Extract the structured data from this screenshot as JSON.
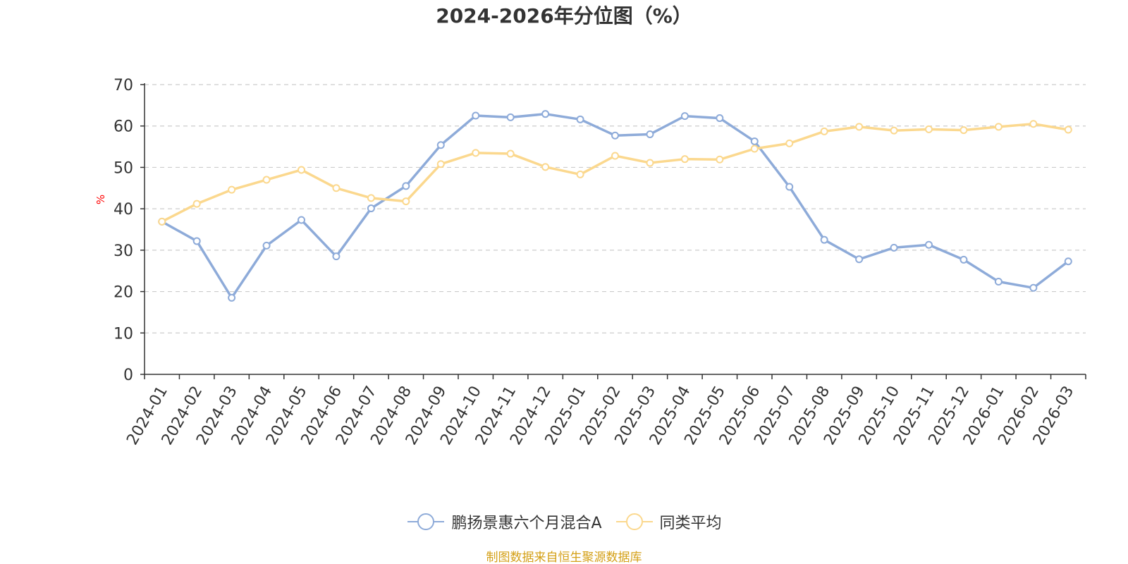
{
  "chart_data": {
    "type": "line",
    "title": "2024-2026年分位图（%）",
    "ylabel": "%",
    "xlabel": "",
    "ylim": [
      0,
      70
    ],
    "yticks": [
      0,
      10,
      20,
      30,
      40,
      50,
      60,
      70
    ],
    "grid": true,
    "legend_position": "bottom",
    "categories": [
      "2024-01",
      "2024-02",
      "2024-03",
      "2024-04",
      "2024-05",
      "2024-06",
      "2024-07",
      "2024-08",
      "2024-09",
      "2024-10",
      "2024-11",
      "2024-12",
      "2025-01",
      "2025-02",
      "2025-03",
      "2025-04",
      "2025-05",
      "2025-06",
      "2025-07",
      "2025-08",
      "2025-09",
      "2025-10",
      "2025-11",
      "2025-12",
      "2026-01",
      "2026-02",
      "2026-03"
    ],
    "series": [
      {
        "name": "鹏扬景惠六个月混合A",
        "color": "#8eabd9",
        "values": [
          36.9,
          32.2,
          18.5,
          31.1,
          37.3,
          28.5,
          40.1,
          45.5,
          55.4,
          62.5,
          62.1,
          62.9,
          61.6,
          57.7,
          58.0,
          62.4,
          61.9,
          56.3,
          45.3,
          32.5,
          27.8,
          30.6,
          31.3,
          27.7,
          22.4,
          20.9,
          27.3
        ]
      },
      {
        "name": "同类平均",
        "color": "#fbd88e",
        "values": [
          36.9,
          41.2,
          44.6,
          47.0,
          49.4,
          45.0,
          42.6,
          41.8,
          50.8,
          53.5,
          53.3,
          50.1,
          48.3,
          52.8,
          51.1,
          52.0,
          51.9,
          54.5,
          55.8,
          58.7,
          59.8,
          58.9,
          59.2,
          59.0,
          59.8,
          60.5,
          59.1
        ]
      }
    ]
  },
  "source_note": "制图数据来自恒生聚源数据库",
  "colors": {
    "axis": "#333333",
    "grid": "#cccccc",
    "ylabel": "#ff0000",
    "source_note": "#d4a017"
  }
}
